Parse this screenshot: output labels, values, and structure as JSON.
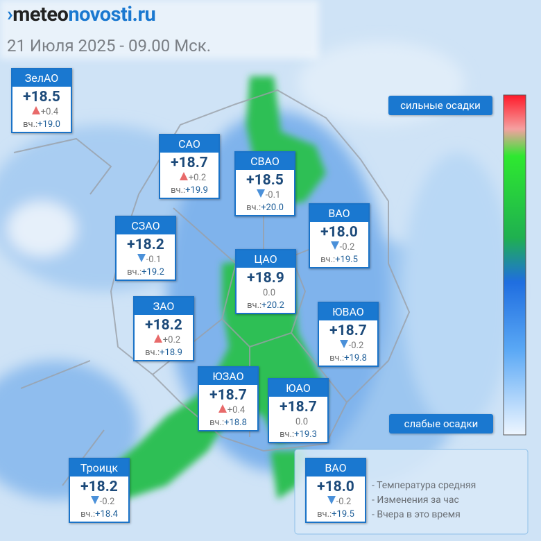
{
  "header": {
    "logo_prefix": "meteo",
    "logo_suffix": "novosti.ru",
    "date": "21 Июля 2025 - 09.00 Мск."
  },
  "labels": {
    "yesterday": "вч.:"
  },
  "districts": [
    {
      "name": "ЗелАО",
      "temp": "+18.5",
      "change": "+0.4",
      "yesterday": "+19.0"
    },
    {
      "name": "САО",
      "temp": "+18.7",
      "change": "+0.2",
      "yesterday": "+19.9"
    },
    {
      "name": "СВАО",
      "temp": "+18.5",
      "change": "-0.1",
      "yesterday": "+20.0"
    },
    {
      "name": "ВАО",
      "temp": "+18.0",
      "change": "-0.2",
      "yesterday": "+19.5"
    },
    {
      "name": "СЗАО",
      "temp": "+18.2",
      "change": "-0.1",
      "yesterday": "+19.2"
    },
    {
      "name": "ЦАО",
      "temp": "+18.9",
      "change": "0.0",
      "yesterday": "+20.2"
    },
    {
      "name": "ЗАО",
      "temp": "+18.2",
      "change": "+0.2",
      "yesterday": "+18.9"
    },
    {
      "name": "ЮВАО",
      "temp": "+18.7",
      "change": "-0.2",
      "yesterday": "+19.8"
    },
    {
      "name": "ЮЗАО",
      "temp": "+18.7",
      "change": "+0.4",
      "yesterday": "+18.8"
    },
    {
      "name": "ЮАО",
      "temp": "+18.7",
      "change": "0.0",
      "yesterday": "+19.3"
    },
    {
      "name": "Троицк",
      "temp": "+18.2",
      "change": "-0.2",
      "yesterday": "+18.4"
    }
  ],
  "precipitation_scale": {
    "strong": "сильные осадки",
    "weak": "слабые осадки"
  },
  "legend": {
    "example": {
      "name": "ВАО",
      "temp": "+18.0",
      "change": "-0.2",
      "yesterday": "+19.5"
    },
    "items": [
      "- Температура средняя",
      "- Изменения за час",
      "- Вчера в это время"
    ]
  }
}
